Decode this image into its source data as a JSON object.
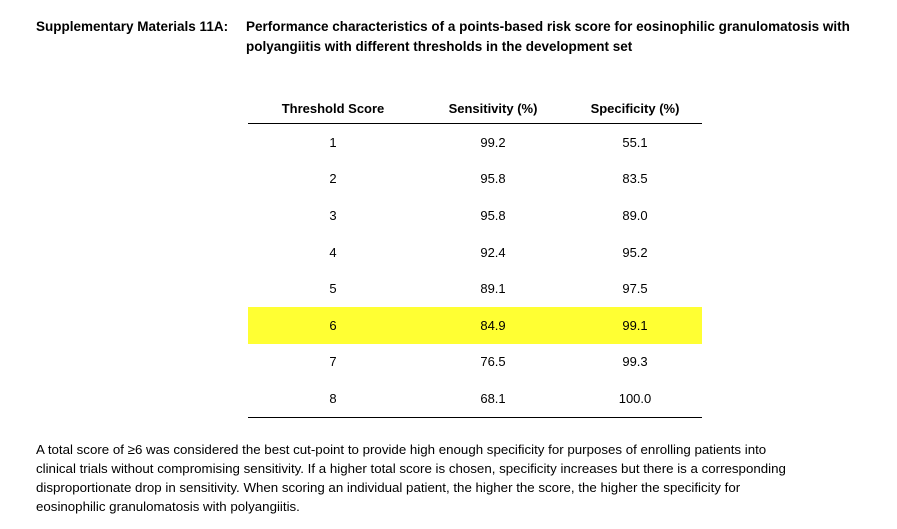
{
  "header": {
    "lead": "Supplementary Materials 11A:",
    "title_line1": "Performance characteristics of a points-based risk score for eosinophilic granulomatosis with",
    "title_line2": "polyangiitis with different thresholds in the development set"
  },
  "table": {
    "columns": [
      "Threshold Score",
      "Sensitivity (%)",
      "Specificity (%)"
    ],
    "rows": [
      [
        "1",
        "99.2",
        "55.1"
      ],
      [
        "2",
        "95.8",
        "83.5"
      ],
      [
        "3",
        "95.8",
        "89.0"
      ],
      [
        "4",
        "92.4",
        "95.2"
      ],
      [
        "5",
        "89.1",
        "97.5"
      ],
      [
        "6",
        "84.9",
        "99.1"
      ],
      [
        "7",
        "76.5",
        "99.3"
      ],
      [
        "8",
        "68.1",
        "100.0"
      ]
    ],
    "highlight_color": "#ffff33"
  },
  "footnote": {
    "line1": "A total score of ≥6 was considered the best cut-point to provide high enough specificity for purposes of enrolling patients into",
    "line2": "clinical trials without compromising sensitivity.  If a higher total score is chosen, specificity increases but there is a corresponding",
    "line3": "disproportionate drop in sensitivity.  When scoring an individual patient, the higher the score, the higher the specificity for",
    "line4": "eosinophilic granulomatosis with polyangiitis."
  }
}
